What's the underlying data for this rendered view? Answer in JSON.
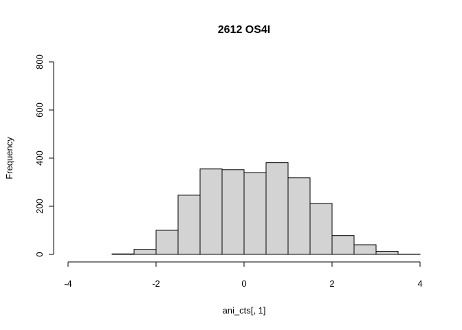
{
  "chart_data": {
    "type": "bar",
    "title": "2612 OS4I",
    "xlabel": "ani_cts[, 1]",
    "ylabel": "Frequency",
    "bar_fill": "#d3d3d3",
    "bar_stroke": "#000000",
    "xlim": [
      -4,
      4
    ],
    "ylim": [
      0,
      800
    ],
    "xticks": [
      -4,
      -2,
      0,
      2,
      4
    ],
    "yticks": [
      0,
      200,
      400,
      600,
      800
    ],
    "bins": [
      {
        "x0": -3.0,
        "x1": -2.5,
        "value": 2
      },
      {
        "x0": -2.5,
        "x1": -2.0,
        "value": 21
      },
      {
        "x0": -2.0,
        "x1": -1.5,
        "value": 100
      },
      {
        "x0": -1.5,
        "x1": -1.0,
        "value": 246
      },
      {
        "x0": -1.0,
        "x1": -0.5,
        "value": 355
      },
      {
        "x0": -0.5,
        "x1": 0.0,
        "value": 352
      },
      {
        "x0": 0.0,
        "x1": 0.5,
        "value": 340
      },
      {
        "x0": 0.5,
        "x1": 1.0,
        "value": 381
      },
      {
        "x0": 1.0,
        "x1": 1.5,
        "value": 318
      },
      {
        "x0": 1.5,
        "x1": 2.0,
        "value": 212
      },
      {
        "x0": 2.0,
        "x1": 2.5,
        "value": 78
      },
      {
        "x0": 2.5,
        "x1": 3.0,
        "value": 40
      },
      {
        "x0": 3.0,
        "x1": 3.5,
        "value": 13
      },
      {
        "x0": 3.5,
        "x1": 4.0,
        "value": 1
      }
    ]
  }
}
